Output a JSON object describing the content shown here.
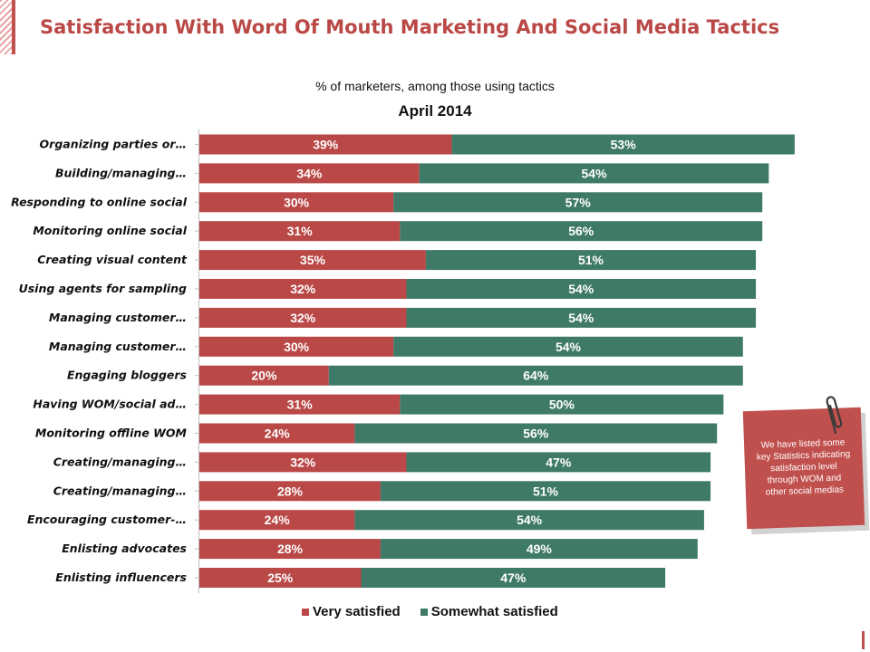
{
  "header": {
    "title": "Satisfaction With Word Of Mouth Marketing And Social Media Tactics",
    "subtitle": "% of marketers, among those using tactics",
    "chart_title": "April 2014"
  },
  "note": {
    "text": "We have listed some key Statistics indicating satisfaction level through WOM and other social medias"
  },
  "colors": {
    "very_satisfied": "#b94846",
    "somewhat_satisfied": "#3f7a68",
    "accent": "#c0504d"
  },
  "legend": {
    "very_label": "Very satisfied",
    "somewhat_label": "Somewhat satisfied"
  },
  "chart_data": {
    "type": "bar",
    "orientation": "horizontal",
    "stacked": true,
    "title": "April 2014",
    "subtitle": "% of marketers, among those using tactics",
    "categories": [
      "Organizing parties or…",
      "Building/managing…",
      "Responding to online social",
      "Monitoring online social",
      "Creating visual content",
      "Using agents for sampling",
      "Managing customer…",
      "Managing customer…",
      "Engaging bloggers",
      "Having WOM/social ad…",
      "Monitoring offline WOM",
      "Creating/managing…",
      "Creating/managing…",
      "Encouraging customer-…",
      "Enlisting advocates",
      "Enlisting influencers"
    ],
    "series": [
      {
        "name": "Very satisfied",
        "values": [
          39,
          34,
          30,
          31,
          35,
          32,
          32,
          30,
          20,
          31,
          24,
          32,
          28,
          24,
          28,
          25
        ]
      },
      {
        "name": "Somewhat satisfied",
        "values": [
          53,
          54,
          57,
          56,
          51,
          54,
          54,
          54,
          64,
          50,
          56,
          47,
          51,
          54,
          49,
          47
        ]
      }
    ],
    "value_suffix": "%",
    "xlim": [
      0,
      100
    ],
    "legend_position": "bottom"
  }
}
